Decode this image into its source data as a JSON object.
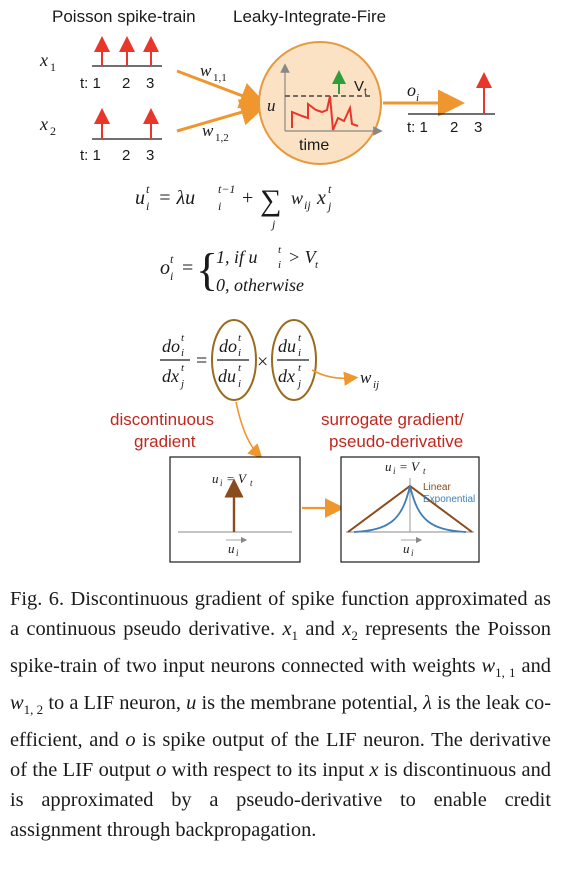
{
  "diagram": {
    "header_left": "Poisson spike-train",
    "header_right": "Leaky-Integrate-Fire",
    "input1_label": "x",
    "input1_sub": "1",
    "input2_label": "x",
    "input2_sub": "2",
    "time_ticks": [
      "t: 1",
      "2",
      "3"
    ],
    "weight1": "w",
    "weight1_sub": "1,1",
    "weight2": "w",
    "weight2_sub": "1,2",
    "neuron_u": "u",
    "neuron_threshold": "V",
    "neuron_threshold_sub": "t",
    "neuron_time": "time",
    "output_label": "o",
    "output_sub": "i",
    "eq_u_left": "u",
    "eq_u_rhs_a": "= λu",
    "eq_u_rhs_b": "+",
    "eq_u_sum": "∑",
    "eq_u_sum_index": "j",
    "eq_u_term": "w",
    "eq_u_term_sub": "ij",
    "eq_u_term_x": "x",
    "eq_o_left": "o",
    "eq_o_equals": "=",
    "eq_o_case1": "1, if u",
    "eq_o_case1_rest": "> V",
    "eq_o_case1_rest_sub": "t",
    "eq_o_case2": "0, otherwise",
    "deriv_w": "w",
    "deriv_w_sub": "ij",
    "label_discontinuous_1": "discontinuous",
    "label_discontinuous_2": "gradient",
    "label_surrogate_1": "surrogate gradient/",
    "label_surrogate_2": "pseudo-derivative",
    "box1_title": "u",
    "box1_title_sub": "i",
    "box1_title_rest": "= V",
    "box1_title_rest_sub": "t",
    "box1_axis": "u",
    "box1_axis_sub": "i",
    "box2_title": "u",
    "box2_title_sub": "i",
    "box2_title_rest": "= V",
    "box2_title_rest_sub": "t",
    "box2_axis": "u",
    "box2_axis_sub": "i",
    "legend_linear": "Linear",
    "legend_exponential": "Exponential",
    "colors": {
      "spike_red": "#e8372a",
      "arrow_orange": "#f0962e",
      "neuron_fill": "#fbe2c4",
      "neuron_stroke": "#e69a3c",
      "label_red": "#c0271c",
      "linear_brown": "#8a4b1d",
      "exp_blue": "#3d7fb8",
      "threshold_green": "#2e9e3a"
    }
  },
  "caption": {
    "fig_label": "Fig. 6.",
    "text_1": "Discontinuous gradient of spike function approximated as a continuous pseudo derivative.",
    "x1": "x",
    "x1_sub": "1",
    "text_2": "and",
    "x2": "x",
    "x2_sub": "2",
    "text_3": "represents the Poisson spike-train of two input neurons connected with weights",
    "w11": "w",
    "w11_sub": "1, 1",
    "text_4": "and",
    "w12": "w",
    "w12_sub": "1, 2",
    "text_5": "to a LIF neuron,",
    "u": "u",
    "text_6": "is the membrane potential,",
    "lambda": "λ",
    "text_7": "is the leak co-efficient, and",
    "o": "o",
    "text_8": "is spike output of the LIF neuron. The derivative of the LIF output",
    "o2": "o",
    "text_9": "with respect to its input",
    "x": "x",
    "text_10": "is discontinuous and is approximated by a pseudo-derivative to enable credit assignment through backpropagation."
  }
}
